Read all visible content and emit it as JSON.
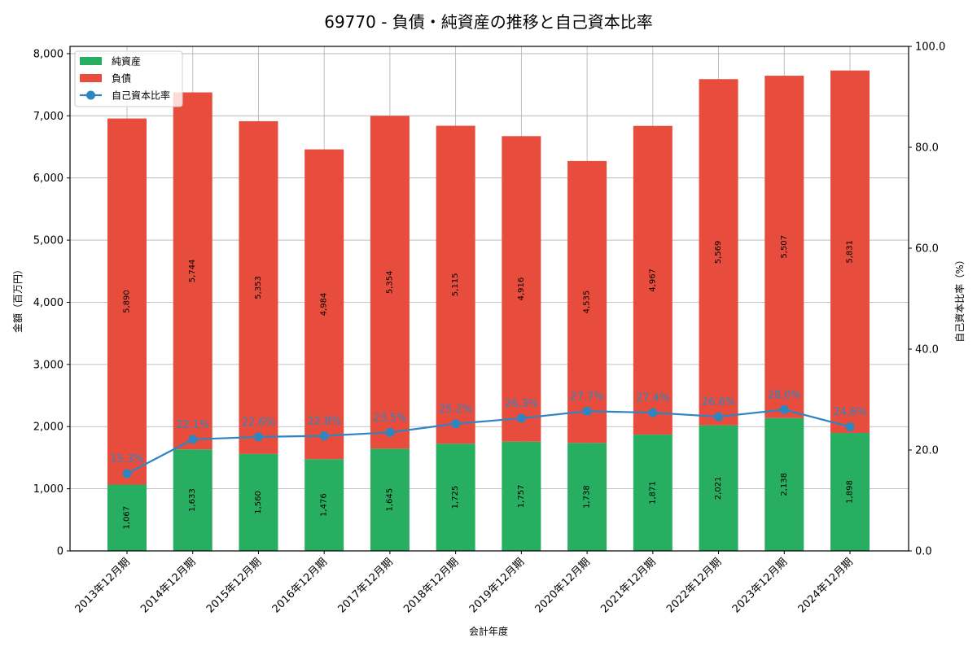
{
  "chart_data": {
    "type": "bar",
    "subtype": "stacked_bar_with_line_secondary_axis",
    "title": "69770 - 負債・純資産の推移と自己資本比率",
    "xlabel": "会計年度",
    "ylabel": "金額（百万円）",
    "y2label": "自己資本比率（%）",
    "ylim": [
      0,
      8117
    ],
    "y2lim": [
      0,
      100
    ],
    "yticks": [
      0,
      1000,
      2000,
      3000,
      4000,
      5000,
      6000,
      7000,
      8000
    ],
    "ytick_labels": [
      "0",
      "1,000",
      "2,000",
      "3,000",
      "4,000",
      "5,000",
      "6,000",
      "7,000",
      "8,000"
    ],
    "y2ticks": [
      0,
      20,
      40,
      60,
      80,
      100
    ],
    "y2tick_labels": [
      "0.0",
      "20.0",
      "40.0",
      "60.0",
      "80.0",
      "100.0"
    ],
    "grid": true,
    "legend_position": "upper left",
    "categories": [
      "2013年12月期",
      "2014年12月期",
      "2015年12月期",
      "2016年12月期",
      "2017年12月期",
      "2018年12月期",
      "2019年12月期",
      "2020年12月期",
      "2021年12月期",
      "2022年12月期",
      "2023年12月期",
      "2024年12月期"
    ],
    "series": [
      {
        "name": "純資産",
        "type": "bar",
        "axis": "left",
        "color": "#27ae60",
        "values": [
          1067,
          1633,
          1560,
          1476,
          1645,
          1725,
          1757,
          1738,
          1871,
          2021,
          2138,
          1898
        ],
        "labels": [
          "1,067",
          "1,633",
          "1,560",
          "1,476",
          "1,645",
          "1,725",
          "1,757",
          "1,738",
          "1,871",
          "2,021",
          "2,138",
          "1,898"
        ]
      },
      {
        "name": "負債",
        "type": "bar",
        "axis": "left",
        "stacked_on": "純資産",
        "color": "#e74c3c",
        "values": [
          5890,
          5744,
          5353,
          4984,
          5354,
          5115,
          4916,
          4535,
          4967,
          5569,
          5507,
          5831
        ],
        "labels": [
          "5,890",
          "5,744",
          "5,353",
          "4,984",
          "5,354",
          "5,115",
          "4,916",
          "4,535",
          "4,967",
          "5,569",
          "5,507",
          "5,831"
        ]
      },
      {
        "name": "自己資本比率",
        "type": "line",
        "axis": "right",
        "color": "#2e86c1",
        "marker": "circle",
        "values": [
          15.3,
          22.1,
          22.6,
          22.8,
          23.5,
          25.2,
          26.3,
          27.7,
          27.4,
          26.6,
          28.0,
          24.6
        ],
        "labels": [
          "15.3%",
          "22.1%",
          "22.6%",
          "22.8%",
          "23.5%",
          "25.2%",
          "26.3%",
          "27.7%",
          "27.4%",
          "26.6%",
          "28.0%",
          "24.6%"
        ]
      }
    ]
  }
}
